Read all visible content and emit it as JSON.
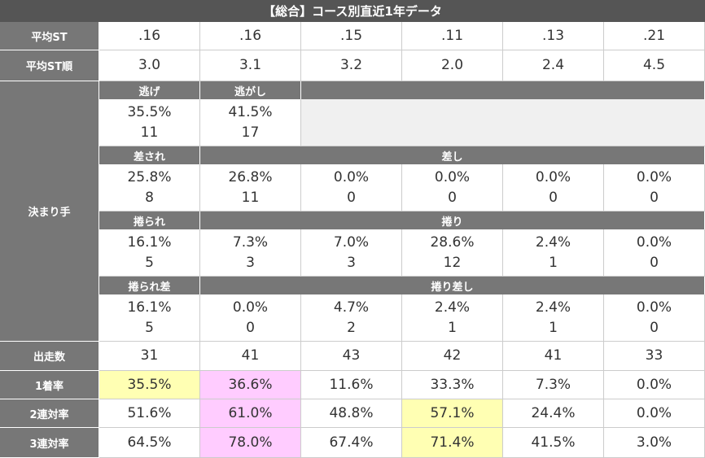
{
  "title": "【総合】コース別直近1年データ",
  "rows": [
    {
      "label": "平均ST",
      "values": [
        ".16",
        ".16",
        ".15",
        ".11",
        ".13",
        ".21"
      ]
    },
    {
      "label": "平均ST順",
      "values": [
        "3.0",
        "3.1",
        "3.2",
        "2.0",
        "2.4",
        "4.5"
      ]
    }
  ],
  "kimarite": {
    "label": "決まり手",
    "groups": [
      {
        "headers": [
          "逃げ",
          "逃がし"
        ],
        "cells": [
          [
            "35.5%",
            "11"
          ],
          [
            "41.5%",
            "17"
          ]
        ]
      },
      {
        "headers": [
          "差され",
          "差し"
        ],
        "cells": [
          [
            "25.8%",
            "8"
          ],
          [
            "26.8%",
            "11"
          ],
          [
            "0.0%",
            "0"
          ],
          [
            "0.0%",
            "0"
          ],
          [
            "0.0%",
            "0"
          ],
          [
            "0.0%",
            "0"
          ]
        ]
      },
      {
        "headers": [
          "捲られ",
          "捲り"
        ],
        "cells": [
          [
            "16.1%",
            "5"
          ],
          [
            "7.3%",
            "3"
          ],
          [
            "7.0%",
            "3"
          ],
          [
            "28.6%",
            "12"
          ],
          [
            "2.4%",
            "1"
          ],
          [
            "0.0%",
            "0"
          ]
        ]
      },
      {
        "headers": [
          "捲られ差",
          "捲り差し"
        ],
        "cells": [
          [
            "16.1%",
            "5"
          ],
          [
            "0.0%",
            "0"
          ],
          [
            "4.7%",
            "2"
          ],
          [
            "2.4%",
            "1"
          ],
          [
            "2.4%",
            "1"
          ],
          [
            "0.0%",
            "0"
          ]
        ]
      }
    ]
  },
  "stats": [
    {
      "label": "出走数",
      "values": [
        "31",
        "41",
        "43",
        "42",
        "41",
        "33"
      ]
    },
    {
      "label": "1着率",
      "values": [
        "35.5%",
        "36.6%",
        "11.6%",
        "33.3%",
        "7.3%",
        "0.0%"
      ],
      "highlights": [
        "#ffffb3",
        "#ffccff",
        null,
        null,
        null,
        null
      ]
    },
    {
      "label": "2連対率",
      "values": [
        "51.6%",
        "61.0%",
        "48.8%",
        "57.1%",
        "24.4%",
        "0.0%"
      ],
      "highlights": [
        null,
        "#ffccff",
        null,
        "#ffffb3",
        null,
        null
      ]
    },
    {
      "label": "3連対率",
      "values": [
        "64.5%",
        "78.0%",
        "67.4%",
        "71.4%",
        "41.5%",
        "3.0%"
      ],
      "highlights": [
        null,
        "#ffccff",
        null,
        "#ffffb3",
        null,
        null
      ]
    }
  ]
}
